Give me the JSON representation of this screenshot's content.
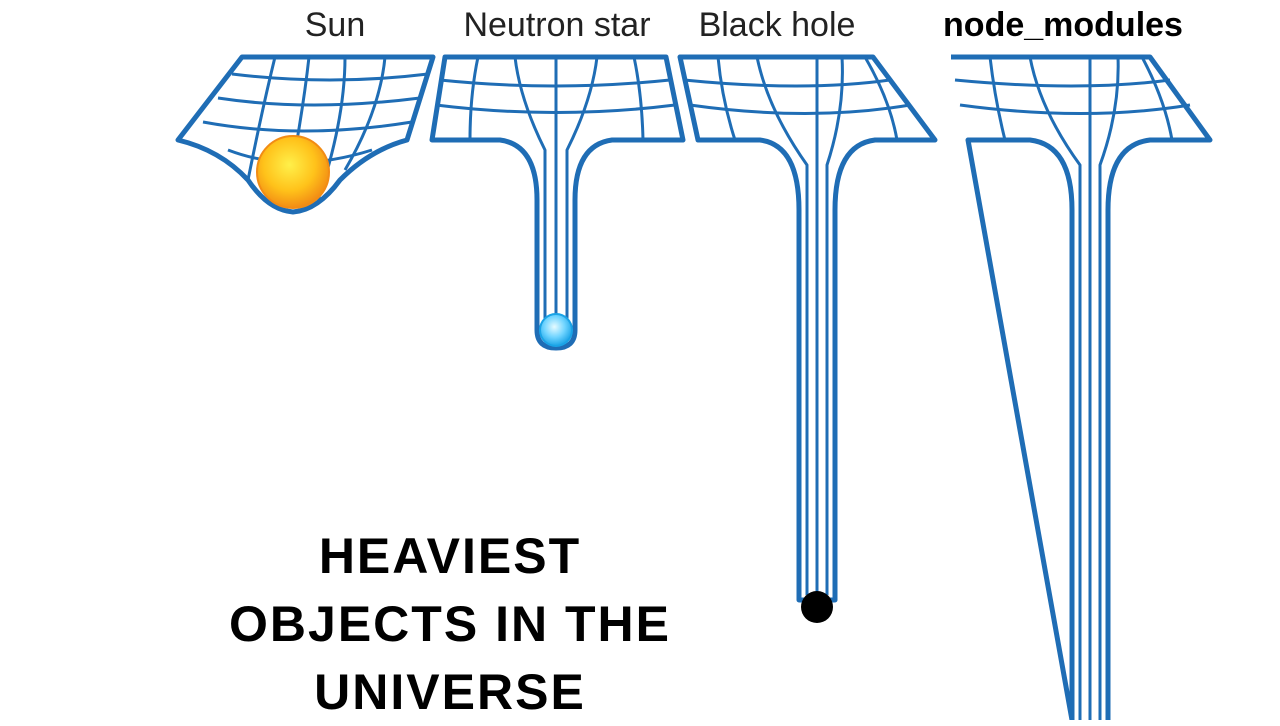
{
  "panels": [
    {
      "label": "Sun",
      "object": "sun-ball-icon"
    },
    {
      "label": "Neutron star",
      "object": "neutron-star-ball-icon"
    },
    {
      "label": "Black hole",
      "object": "black-hole-ball-icon"
    },
    {
      "label": "node_modules",
      "object": "none"
    }
  ],
  "caption": {
    "line1": "HEAVIEST",
    "line2": "OBJECTS IN THE",
    "line3": "UNIVERSE"
  },
  "colors": {
    "grid_line": "#1f6db5",
    "sun_core": "#fff04a",
    "sun_edge": "#f28c14",
    "neutron_core": "#e6fbff",
    "neutron_edge": "#1aa3e6",
    "black_hole": "#000000",
    "text": "#000000"
  }
}
